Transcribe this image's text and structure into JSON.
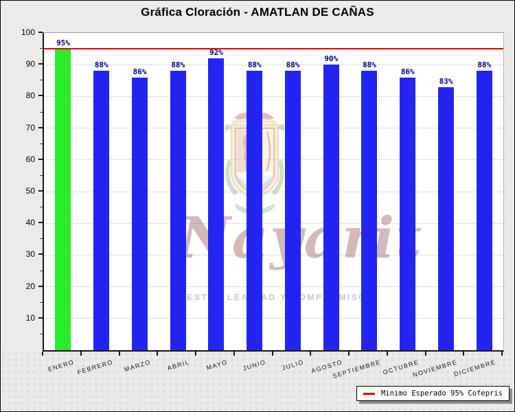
{
  "window": {
    "title": "Gráfica Cloración - AMATLAN DE CAÑAS"
  },
  "colors": {
    "window_background": "#EBEBE9",
    "plot_background": "#FFFFFF",
    "gridline": "#E0E0DE",
    "bar_blue": "#2424F2",
    "bar_green": "#2BEC2B",
    "reference_line_red": "#E40000",
    "value_label_navy": "#000080"
  },
  "chart_data": {
    "type": "bar",
    "title": "Gráfica Cloración - AMATLAN DE CAÑAS",
    "categories": [
      "ENERO",
      "FEBRERO",
      "MARZO",
      "ABRIL",
      "MAYO",
      "JUNIO",
      "JULIO",
      "AGOSTO",
      "SEPTIEMBRE",
      "OCTUBRE",
      "NOVIEMBRE",
      "DICIEMBRE"
    ],
    "values": [
      95,
      88,
      86,
      88,
      92,
      88,
      88,
      90,
      88,
      86,
      83,
      88
    ],
    "value_labels": [
      "95%",
      "88%",
      "86%",
      "88%",
      "92%",
      "88%",
      "88%",
      "90%",
      "88%",
      "86%",
      "83%",
      "88%"
    ],
    "bar_colors": [
      "#2BEC2B",
      "#2424F2",
      "#2424F2",
      "#2424F2",
      "#2424F2",
      "#2424F2",
      "#2424F2",
      "#2424F2",
      "#2424F2",
      "#2424F2",
      "#2424F2",
      "#2424F2"
    ],
    "unit": "%",
    "ylim": [
      0,
      100
    ],
    "ytick_step": 10,
    "yticks": [
      10,
      20,
      30,
      40,
      50,
      60,
      70,
      80,
      90,
      100
    ],
    "minor_tick_step": 5,
    "grid": "horizontal",
    "value_label_color": "#000080",
    "reference_line": {
      "value": 95,
      "label": "Minimo Esperado 95% Cofepris",
      "color": "#E40000"
    },
    "legend_position": "bottom-right"
  },
  "watermark": {
    "script_text": "Nayarit",
    "tagline": "NUESTRA LEALTAD Y COMPROMISO"
  }
}
